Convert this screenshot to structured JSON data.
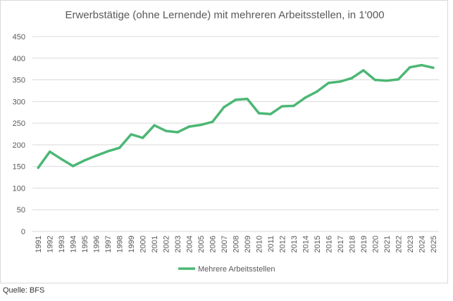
{
  "chart_data": {
    "type": "line",
    "title": "Erwerbstätige (ohne Lernende) mit mehreren Arbeitsstellen, in 1'000",
    "xlabel": "",
    "ylabel": "",
    "x": [
      "1991",
      "1992",
      "1993",
      "1994",
      "1995",
      "1996",
      "1997",
      "1998",
      "1999",
      "2000",
      "2001",
      "2002",
      "2003",
      "2004",
      "2005",
      "2006",
      "2007",
      "2008",
      "2009",
      "2010",
      "2011",
      "2012",
      "2013",
      "2014",
      "2015",
      "2016",
      "2017",
      "2018",
      "2019",
      "2020",
      "2021",
      "2022",
      "2023",
      "2024",
      "2025"
    ],
    "series": [
      {
        "name": "Mehrere Arbeitsstellen",
        "color": "#4cb774",
        "values": [
          147,
          184,
          167,
          151,
          164,
          175,
          185,
          193,
          224,
          216,
          245,
          232,
          229,
          242,
          246,
          253,
          287,
          304,
          306,
          273,
          271,
          289,
          290,
          309,
          323,
          343,
          346,
          354,
          372,
          350,
          348,
          351,
          379,
          384,
          378
        ]
      }
    ],
    "ylim": [
      0,
      450
    ],
    "yticks": [
      0,
      50,
      100,
      150,
      200,
      250,
      300,
      350,
      400,
      450
    ],
    "grid": true,
    "legend_position": "bottom"
  },
  "source_text": "Quelle: BFS"
}
